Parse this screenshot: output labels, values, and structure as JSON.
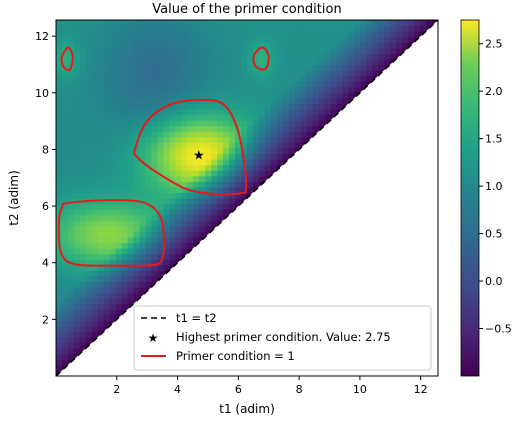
{
  "chart_data": {
    "type": "heatmap",
    "title": "Value of the primer condition",
    "xlabel": "t1 (adim)",
    "ylabel": "t2 (adim)",
    "xlim": [
      0,
      12.57
    ],
    "ylim": [
      0,
      12.57
    ],
    "xticks": [
      2,
      4,
      6,
      8,
      10,
      12
    ],
    "yticks": [
      2,
      4,
      6,
      8,
      10,
      12
    ],
    "colormap": "viridis",
    "colorbar": {
      "range": [
        -1.0,
        2.75
      ],
      "ticks": [
        -0.5,
        0.0,
        0.5,
        1.0,
        1.5,
        2.0,
        2.5
      ],
      "tick_labels": [
        "−0.5",
        "0.0",
        "0.5",
        "1.0",
        "1.5",
        "2.0",
        "2.5"
      ]
    },
    "masked_region": "t1 > t2 (white)",
    "max_point": {
      "t1": 4.7,
      "t2": 7.8,
      "value": 2.75
    },
    "contour_level": 1,
    "contours": [
      {
        "name": "upper-left small loop",
        "points": [
          [
            0.2,
            11.3
          ],
          [
            0.4,
            11.6
          ],
          [
            0.55,
            11.3
          ],
          [
            0.48,
            10.85
          ],
          [
            0.3,
            10.85
          ],
          [
            0.2,
            11.05
          ]
        ]
      },
      {
        "name": "upper-right small loop",
        "points": [
          [
            6.55,
            11.4
          ],
          [
            6.8,
            11.6
          ],
          [
            7.0,
            11.3
          ],
          [
            6.9,
            10.85
          ],
          [
            6.6,
            10.9
          ],
          [
            6.5,
            11.15
          ]
        ]
      },
      {
        "name": "central loop",
        "points": [
          [
            2.6,
            8.0
          ],
          [
            3.0,
            9.0
          ],
          [
            3.8,
            9.6
          ],
          [
            4.8,
            9.75
          ],
          [
            5.5,
            9.6
          ],
          [
            5.95,
            8.8
          ],
          [
            6.2,
            7.5
          ],
          [
            6.25,
            6.6
          ],
          [
            6.1,
            6.45
          ],
          [
            5.3,
            6.42
          ],
          [
            4.3,
            6.6
          ],
          [
            3.3,
            7.2
          ],
          [
            2.7,
            7.7
          ]
        ]
      },
      {
        "name": "lower-left loop",
        "points": [
          [
            0.35,
            6.1
          ],
          [
            1.5,
            6.2
          ],
          [
            2.8,
            6.15
          ],
          [
            3.4,
            5.7
          ],
          [
            3.55,
            4.9
          ],
          [
            3.5,
            4.15
          ],
          [
            3.2,
            3.92
          ],
          [
            2.0,
            3.9
          ],
          [
            0.6,
            3.95
          ],
          [
            0.15,
            4.4
          ],
          [
            0.1,
            5.5
          ],
          [
            0.2,
            5.95
          ]
        ]
      }
    ],
    "legend": {
      "placement": "lower-right",
      "entries": [
        {
          "label": "t1 = t2",
          "style": "dashed",
          "color": "#000000"
        },
        {
          "label": "Highest primer condition. Value: 2.75",
          "style": "star",
          "color": "#0000ff"
        },
        {
          "label": "Primer condition = 1",
          "style": "solid",
          "color": "#e41a1c"
        }
      ]
    }
  }
}
